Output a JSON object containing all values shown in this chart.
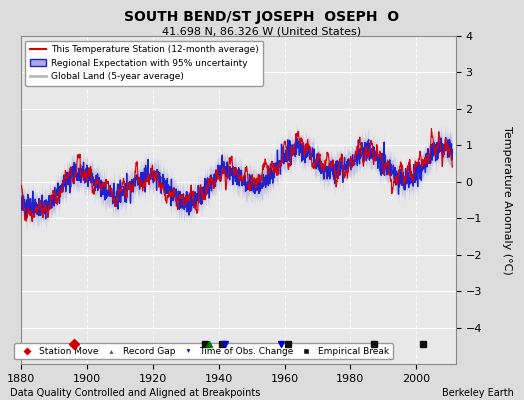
{
  "title": "SOUTH BEND/ST JOSEPH  OSEPH  O",
  "subtitle": "41.698 N, 86.326 W (United States)",
  "xlabel_bottom": "Data Quality Controlled and Aligned at Breakpoints",
  "xlabel_right": "Berkeley Earth",
  "ylabel": "Temperature Anomaly (°C)",
  "xlim": [
    1880,
    2012
  ],
  "ylim": [
    -5,
    4
  ],
  "yticks": [
    -4,
    -3,
    -2,
    -1,
    0,
    1,
    2,
    3,
    4
  ],
  "xticks": [
    1880,
    1900,
    1920,
    1940,
    1960,
    1980,
    2000
  ],
  "bg_color": "#dcdcdc",
  "plot_bg_color": "#e8e8e8",
  "grid_color": "#ffffff",
  "red_color": "#dd0000",
  "blue_color": "#2222cc",
  "blue_fill_color": "#aaaadd",
  "gray_color": "#bbbbbb",
  "station_move_color": "#cc0000",
  "record_gap_color": "#007700",
  "time_obs_color": "#0000cc",
  "empirical_break_color": "#111111",
  "empirical_breaks": [
    1936,
    1941,
    1961,
    1987,
    2002
  ],
  "station_moves": [
    1896
  ],
  "record_gaps": [
    1937
  ],
  "time_obs_changes": [
    1942,
    1959
  ],
  "legend_main_fontsize": 6.5,
  "legend_marker_fontsize": 6.5,
  "tick_fontsize": 8,
  "title_fontsize": 10,
  "subtitle_fontsize": 8
}
